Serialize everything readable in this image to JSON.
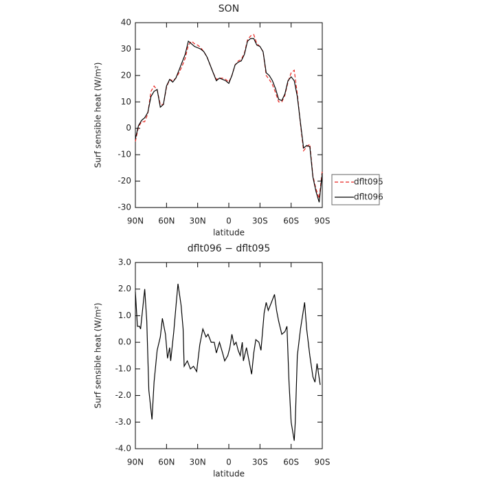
{
  "chart_data": [
    {
      "type": "line",
      "title": "SON",
      "xlabel": "latitude",
      "ylabel": "Surf sensible heat (W/m²)",
      "x": [
        90,
        87,
        84,
        81,
        78,
        75,
        72,
        69,
        66,
        63,
        60,
        57,
        54,
        51,
        48,
        45,
        42,
        39,
        36,
        33,
        30,
        27,
        24,
        21,
        18,
        15,
        12,
        9,
        6,
        3,
        0,
        -3,
        -6,
        -9,
        -12,
        -15,
        -18,
        -21,
        -24,
        -27,
        -30,
        -33,
        -36,
        -39,
        -42,
        -45,
        -48,
        -51,
        -54,
        -57,
        -60,
        -63,
        -66,
        -69,
        -72,
        -75,
        -78,
        -81,
        -84,
        -87,
        -90
      ],
      "series": [
        {
          "name": "dflt095",
          "color": "#e8231e",
          "line_style": "dashed",
          "values": [
            -5,
            0.5,
            2.5,
            2.5,
            5.5,
            14,
            16,
            14.5,
            9,
            9,
            15.5,
            18.5,
            18,
            19,
            21,
            23.5,
            26.5,
            31.5,
            33,
            32,
            31.5,
            30.5,
            29,
            27,
            24,
            21,
            18.5,
            19,
            19,
            18.5,
            17.5,
            20,
            24,
            25.5,
            26,
            28.5,
            33.5,
            35,
            35.5,
            32,
            31,
            29,
            20,
            18.5,
            16.5,
            13.5,
            10,
            10,
            12.5,
            17.5,
            21,
            22,
            13,
            1.5,
            -8.5,
            -7,
            -6,
            -18,
            -23,
            -26.5,
            -16
          ]
        },
        {
          "name": "dflt096",
          "color": "#000000",
          "line_style": "solid",
          "values": [
            -4,
            1,
            3,
            4,
            6,
            12,
            14,
            14.7,
            8,
            9,
            16,
            18.5,
            17.5,
            19,
            22,
            25,
            28,
            33,
            32,
            31,
            30.5,
            30,
            29,
            27,
            24,
            21,
            18,
            19,
            18.5,
            18,
            17,
            20,
            24,
            25,
            25.5,
            28,
            33,
            34,
            34,
            31.5,
            31,
            29,
            21,
            20,
            18,
            15,
            11,
            10.5,
            13,
            18,
            19.5,
            18,
            12,
            2,
            -7.5,
            -6.5,
            -7,
            -18.5,
            -24,
            -28,
            -17
          ]
        }
      ],
      "xlim": [
        90,
        -90
      ],
      "xticks": [
        {
          "value": 90,
          "label": "90N"
        },
        {
          "value": 60,
          "label": "60N"
        },
        {
          "value": 30,
          "label": "30N"
        },
        0,
        {
          "value": -30,
          "label": "30S"
        },
        {
          "value": -60,
          "label": "60S"
        },
        {
          "value": -90,
          "label": "90S"
        }
      ],
      "ylim": [
        -30,
        40
      ],
      "yticks": [
        -30,
        -20,
        -10,
        0,
        10,
        20,
        30,
        40
      ],
      "legend": "right"
    },
    {
      "type": "line",
      "title": "dflt096 − dflt095",
      "xlabel": "latitude",
      "ylabel": "Surf sensible heat (W/m²)",
      "x": [
        90,
        88,
        86,
        85,
        81,
        79,
        77,
        74,
        72,
        69,
        66,
        64,
        61,
        59,
        57,
        56,
        53,
        51,
        49,
        46,
        44,
        43,
        40,
        37,
        34,
        31,
        28,
        25,
        22,
        20,
        17,
        14,
        12,
        9,
        6,
        4,
        1,
        -1,
        -3,
        -5,
        -7,
        -9,
        -11,
        -13,
        -14,
        -17,
        -19,
        -22,
        -24,
        -26,
        -29,
        -31,
        -34,
        -36,
        -38,
        -41,
        -44,
        -46,
        -48,
        -51,
        -54,
        -56,
        -58,
        -60,
        -63,
        -64,
        -66,
        -69,
        -71,
        -73,
        -75,
        -78,
        -81,
        -83,
        -85,
        -88
      ],
      "values": [
        1.9,
        0.6,
        0.6,
        0.5,
        2.0,
        0.8,
        -1.8,
        -2.9,
        -1.5,
        -0.3,
        0.2,
        0.9,
        0.3,
        -0.6,
        -0.2,
        -0.7,
        0.4,
        1.3,
        2.2,
        1.4,
        0.5,
        -0.9,
        -0.7,
        -1.0,
        -0.9,
        -1.1,
        -0.1,
        0.5,
        0.2,
        0.3,
        0.0,
        0.0,
        -0.4,
        0.0,
        -0.4,
        -0.7,
        -0.5,
        -0.2,
        0.3,
        -0.1,
        0.0,
        -0.3,
        -0.5,
        0.0,
        -0.7,
        -0.2,
        -0.6,
        -1.2,
        -0.4,
        0.1,
        0.0,
        -0.3,
        1.1,
        1.5,
        1.2,
        1.5,
        1.8,
        1.2,
        0.8,
        0.3,
        0.4,
        0.6,
        -1.5,
        -3.0,
        -3.7,
        -3.0,
        -0.5,
        0.5,
        1.0,
        1.5,
        0.5,
        -0.5,
        -1.3,
        -1.5,
        -0.8,
        -1.6
      ],
      "color": "#000000",
      "xlim": [
        90,
        -90
      ],
      "xticks": [
        {
          "value": 90,
          "label": "90N"
        },
        {
          "value": 60,
          "label": "60N"
        },
        {
          "value": 30,
          "label": "30N"
        },
        0,
        {
          "value": -30,
          "label": "30S"
        },
        {
          "value": -60,
          "label": "60S"
        },
        {
          "value": -90,
          "label": "90S"
        }
      ],
      "ylim": [
        -4,
        3
      ],
      "yticks": [
        {
          "value": -4,
          "label": "-4.0"
        },
        {
          "value": -3,
          "label": "-3.0"
        },
        {
          "value": -2,
          "label": "-2.0"
        },
        {
          "value": -1,
          "label": "-1.0"
        },
        {
          "value": 0,
          "label": "0.0"
        },
        {
          "value": 1,
          "label": "1.0"
        },
        {
          "value": 2,
          "label": "2.0"
        },
        {
          "value": 3,
          "label": "3.0"
        }
      ]
    }
  ]
}
